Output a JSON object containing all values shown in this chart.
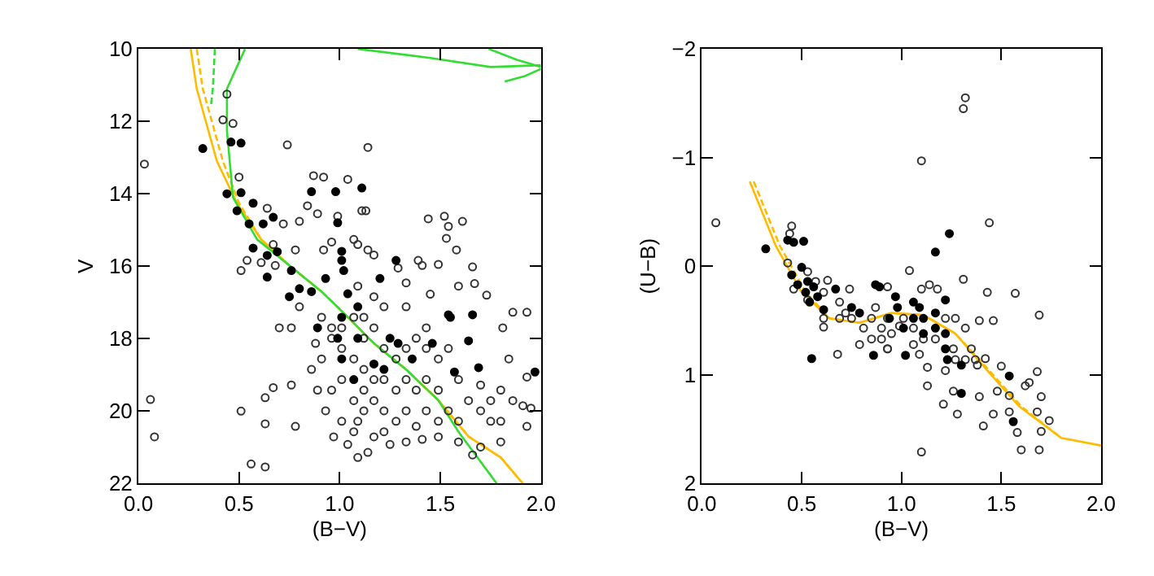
{
  "chart_data": [
    {
      "type": "scatter",
      "xlabel": "(B−V)",
      "ylabel": "V",
      "xlim": [
        0,
        2
      ],
      "ylim": [
        22,
        10
      ],
      "xticks": [
        {
          "value": 0,
          "label": "0.0"
        },
        {
          "value": 0.5,
          "label": "0.5"
        },
        {
          "value": 1,
          "label": "1.0"
        },
        {
          "value": 1.5,
          "label": "1.5"
        },
        {
          "value": 2,
          "label": "2.0"
        }
      ],
      "yticks": [
        10,
        12,
        14,
        16,
        18,
        20,
        22
      ],
      "series": [
        {
          "marker": "circle-open",
          "color": "#333333",
          "x": [
            0.06,
            0.08,
            0.03,
            0.56,
            0.63,
            0.51,
            0.42,
            0.47,
            0.44,
            0.5,
            0.74,
            1.14,
            0.87,
            0.92,
            1.04,
            1.13,
            1.11,
            1.44,
            1.52,
            1.61,
            1.54,
            1.53,
            1.58,
            1.66,
            1.73,
            1.86,
            1.93,
            1.81,
            1.84,
            1.93,
            1.95,
            1.93,
            1.8,
            1.66,
            1.39,
            1.41,
            1.49,
            1.29,
            1.33,
            1.45,
            1.59,
            1.67,
            0.64,
            0.72,
            0.8,
            0.67,
            0.78,
            0.61,
            0.68,
            0.7,
            0.76,
            0.76,
            0.67,
            0.78,
            0.63,
            0.63,
            0.8,
            0.91,
            0.88,
            0.91,
            0.86,
            0.89,
            0.93,
            0.97,
            1.09,
            1.14,
            1.25,
            1.33,
            1.41,
            1.17,
            1.09,
            1.07,
            1.12,
            1.17,
            1.22,
            1.28,
            1.33,
            1.38,
            1.43,
            1.49,
            1.54,
            1.59,
            1.7,
            1.75,
            1.86,
            1.91,
            1.8,
            1.7,
            1.59,
            1.49,
            1.38,
            1.28,
            1.22,
            1.17,
            1.12,
            1.07,
            1.01,
            0.96,
            0.96,
            1.01,
            1.07,
            1.12,
            1.12,
            1.17,
            1.22,
            1.28,
            1.33,
            1.38,
            1.43,
            1.49,
            1.54,
            1.43,
            1.33,
            1.22,
            1.17,
            1.09,
            1.07,
            1.09,
            1.14,
            1.17,
            0.92,
            0.96,
            0.99,
            0.84,
            0.89,
            0.51,
            0.54,
            1.43,
            1.33,
            1.01,
            0.96,
            1.01,
            1.22,
            1.49,
            1.59,
            1.7,
            1.8,
            1.75,
            1.64,
            1.12,
            1.07,
            1.04
          ],
          "values": [
            19.68,
            20.71,
            13.18,
            21.46,
            21.54,
            20.0,
            11.96,
            12.06,
            11.25,
            13.54,
            12.65,
            12.72,
            13.5,
            13.54,
            13.6,
            14.47,
            14.47,
            14.69,
            14.62,
            14.76,
            14.9,
            15.23,
            15.55,
            16.02,
            16.8,
            17.27,
            17.27,
            17.7,
            18.56,
            19.06,
            19.92,
            20.42,
            20.85,
            21.21,
            15.84,
            15.98,
            15.95,
            16.05,
            16.46,
            16.77,
            16.55,
            16.48,
            14.4,
            14.83,
            14.76,
            15.4,
            15.55,
            15.9,
            15.98,
            17.7,
            17.7,
            19.28,
            19.35,
            20.42,
            19.63,
            20.35,
            17.12,
            17.41,
            18.13,
            18.56,
            18.85,
            19.42,
            19.99,
            20.71,
            21.28,
            21.14,
            20.92,
            20.85,
            20.78,
            20.71,
            20.28,
            19.71,
            19.42,
            19.71,
            19.99,
            20.28,
            19.99,
            20.42,
            19.99,
            20.28,
            19.99,
            20.28,
            19.99,
            20.28,
            19.71,
            19.85,
            19.42,
            19.28,
            19.13,
            19.42,
            19.42,
            19.42,
            19.13,
            19.13,
            18.85,
            18.56,
            18.27,
            17.99,
            17.7,
            17.7,
            17.41,
            17.41,
            17.99,
            17.7,
            18.27,
            18.56,
            18.27,
            17.99,
            18.27,
            18.56,
            18.27,
            17.7,
            17.12,
            17.12,
            16.84,
            16.55,
            15.26,
            15.4,
            15.55,
            15.69,
            15.55,
            15.33,
            14.62,
            14.33,
            14.55,
            16.12,
            15.84,
            19.13,
            19.13,
            19.13,
            19.42,
            20.28,
            20.57,
            20.71,
            20.85,
            20.99,
            20.28,
            19.71,
            19.71,
            19.99,
            20.57,
            20.92
          ]
        },
        {
          "marker": "circle",
          "color": "#000000",
          "x": [
            0.32,
            0.46,
            0.51,
            0.44,
            0.51,
            0.49,
            0.57,
            0.55,
            0.62,
            0.67,
            0.57,
            0.64,
            0.64,
            0.69,
            0.75,
            0.76,
            0.86,
            0.98,
            1.11,
            0.99,
            1.01,
            1.01,
            1.02,
            0.93,
            0.89,
            0.99,
            1.04,
            1.28,
            1.2,
            1.09,
            1.01,
            1.01,
            1.09,
            1.17,
            1.25,
            1.29,
            1.36,
            1.46,
            1.54,
            1.55,
            1.66,
            1.64,
            1.57,
            1.69,
            1.97,
            1.22,
            1.07,
            0.86,
            0.8
          ],
          "values": [
            12.75,
            12.57,
            12.6,
            14.0,
            13.97,
            14.47,
            14.26,
            14.83,
            14.83,
            14.65,
            15.5,
            16.3,
            15.7,
            15.6,
            16.84,
            16.12,
            13.94,
            13.94,
            13.84,
            14.8,
            15.59,
            15.84,
            16.12,
            16.34,
            17.7,
            17.99,
            16.76,
            15.84,
            16.34,
            17.12,
            17.41,
            18.56,
            17.99,
            18.7,
            17.99,
            18.13,
            18.56,
            18.13,
            17.34,
            17.41,
            17.34,
            18.06,
            18.92,
            18.8,
            18.92,
            18.85,
            19.13,
            16.7,
            16.62
          ]
        },
        {
          "type": "line",
          "line_style": "solid",
          "color": "#ffbb00",
          "x": [
            0.26,
            0.29,
            0.39,
            0.49,
            0.61,
            0.75,
            0.91,
            1.04,
            1.17,
            1.33,
            1.49,
            1.64,
            1.8,
            1.91
          ],
          "values": [
            10,
            11.1,
            13.1,
            14.26,
            15.26,
            15.98,
            16.7,
            17.4,
            18.13,
            18.85,
            19.7,
            20.7,
            21.28,
            22
          ]
        },
        {
          "type": "line",
          "line_style": "dashed",
          "color": "#ffbb00",
          "x": [
            0.29,
            0.32,
            0.42,
            0.5,
            0.61,
            0.75,
            0.91,
            1.04,
            1.17,
            1.33,
            1.49,
            1.64,
            1.8,
            1.91
          ],
          "values": [
            10,
            11.1,
            13.1,
            14.26,
            15.26,
            15.98,
            16.7,
            17.4,
            18.13,
            18.85,
            19.7,
            20.7,
            21.28,
            22
          ]
        },
        {
          "type": "line",
          "line_style": "solid",
          "color": "#33dd33",
          "x": [
            0.53,
            0.44,
            0.44,
            0.47,
            0.59,
            0.75,
            0.91,
            1.04,
            1.17,
            1.33,
            1.49,
            1.59,
            1.78
          ],
          "values": [
            10,
            11.1,
            12.25,
            14.1,
            15.26,
            15.98,
            16.7,
            17.4,
            18.13,
            18.85,
            19.7,
            20.57,
            22
          ]
        },
        {
          "type": "line",
          "line_style": "dashed",
          "color": "#33dd33",
          "x": [
            0.38,
            0.37,
            0.36
          ],
          "values": [
            10,
            11.1,
            11.6
          ]
        },
        {
          "type": "line",
          "line_style": "solid",
          "color": "#33dd33",
          "x": [
            1.09,
            1.45,
            1.75,
            2.0
          ],
          "values": [
            10,
            10.25,
            10.5,
            10.45
          ]
        },
        {
          "type": "line",
          "line_style": "solid",
          "color": "#33dd33",
          "x": [
            1.74,
            1.88,
            2.0
          ],
          "values": [
            10,
            10.3,
            10.5
          ]
        },
        {
          "type": "line",
          "line_style": "solid",
          "color": "#33dd33",
          "x": [
            1.82,
            1.92,
            2.0
          ],
          "values": [
            10.9,
            10.75,
            10.55
          ]
        }
      ]
    },
    {
      "type": "scatter",
      "xlabel": "(B−V)",
      "ylabel": "(U−B)",
      "xlim": [
        0,
        2
      ],
      "ylim": [
        2,
        -2
      ],
      "xticks": [
        {
          "value": 0,
          "label": "0.0"
        },
        {
          "value": 0.5,
          "label": "0.5"
        },
        {
          "value": 1,
          "label": "1.0"
        },
        {
          "value": 1.5,
          "label": "1.5"
        },
        {
          "value": 2,
          "label": "2.0"
        }
      ],
      "yticks": [
        {
          "value": -2,
          "label": "−2"
        },
        {
          "value": -1,
          "label": "−1"
        },
        0,
        1,
        2
      ],
      "series": [
        {
          "marker": "circle-open",
          "color": "#333333",
          "x": [
            0.07,
            0.45,
            0.44,
            0.43,
            0.46,
            0.53,
            0.57,
            0.61,
            0.63,
            0.61,
            0.68,
            0.74,
            0.69,
            0.72,
            0.75,
            0.79,
            0.81,
            0.85,
            0.9,
            0.93,
            0.93,
            0.9,
            0.95,
            0.99,
            1.04,
            1.1,
            1.1,
            1.14,
            1.18,
            1.11,
            1.06,
            1.09,
            1.13,
            1.13,
            1.1,
            1.21,
            1.26,
            1.28,
            1.32,
            1.31,
            1.31,
            1.32,
            1.35,
            1.38,
            1.39,
            1.41,
            1.39,
            1.43,
            1.44,
            1.46,
            1.42,
            1.46,
            1.48,
            1.5,
            1.54,
            1.57,
            1.58,
            1.6,
            1.62,
            1.64,
            1.68,
            1.69,
            1.69,
            1.7,
            1.68,
            1.7,
            1.74,
            1.54,
            1.37,
            1.26,
            1.27,
            1.32,
            1.22,
            0.69,
            0.85,
            0.87,
            0.93,
            1.01,
            1.06,
            1.17,
            1.22,
            1.27,
            0.53,
            0.61,
            0.93
          ],
          "values": [
            -0.4,
            -0.37,
            -0.3,
            -0.03,
            0.21,
            0.05,
            0.14,
            0.24,
            0.13,
            0.56,
            0.81,
            0.21,
            0.33,
            0.43,
            0.48,
            0.72,
            0.57,
            0.48,
            0.67,
            0.19,
            0.76,
            0.57,
            0.62,
            0.55,
            0.04,
            -0.97,
            0.21,
            0.17,
            0.21,
            0.67,
            0.72,
            0.81,
            0.93,
            1.1,
            1.71,
            1.27,
            1.15,
            1.36,
            -1.55,
            -1.45,
            0.12,
            0.57,
            0.76,
            0.91,
            1.2,
            1.47,
            0.5,
            0.24,
            -0.4,
            0.5,
            0.85,
            1.36,
            1.15,
            0.92,
            1.19,
            0.25,
            1.53,
            1.69,
            1.1,
            1.07,
            0.97,
            0.45,
            1.69,
            1.2,
            1.34,
            1.52,
            1.42,
            1.34,
            0.86,
            0.76,
            0.86,
            0.86,
            0.96,
            0.48,
            0.67,
            0.38,
            0.48,
            0.48,
            0.57,
            0.67,
            0.48,
            0.48,
            0.31,
            0.48,
            0.76
          ]
        },
        {
          "marker": "circle",
          "color": "#000000",
          "x": [
            0.32,
            0.43,
            0.46,
            0.51,
            0.45,
            0.5,
            0.48,
            0.53,
            0.52,
            0.56,
            0.58,
            0.54,
            0.61,
            0.67,
            0.55,
            0.75,
            0.79,
            0.87,
            0.89,
            0.86,
            1.02,
            0.97,
            0.98,
            1.06,
            1.09,
            1.11,
            1.17,
            1.17,
            1.24,
            1.22,
            1.17,
            1.22,
            1.23,
            1.01,
            0.94,
            1.3,
            1.3,
            1.54,
            1.56,
            1.06,
            1.11,
            1.22
          ],
          "values": [
            -0.16,
            -0.24,
            -0.22,
            -0.23,
            0.08,
            0.01,
            0.17,
            0.14,
            0.24,
            0.19,
            0.28,
            0.33,
            0.4,
            0.21,
            0.85,
            0.38,
            0.43,
            0.17,
            0.19,
            0.82,
            0.82,
            0.28,
            0.38,
            0.33,
            0.38,
            0.48,
            0.43,
            -0.13,
            -0.3,
            0.31,
            0.57,
            0.76,
            0.86,
            0.57,
            0.48,
            1.17,
            0.91,
            1.01,
            1.43,
            0.48,
            0.62,
            0.62
          ]
        },
        {
          "type": "line",
          "line_style": "solid",
          "color": "#ffbb00",
          "x": [
            0.24,
            0.37,
            0.5,
            0.64,
            0.79,
            0.95,
            1.11,
            1.27,
            1.43,
            1.59,
            1.8,
            2.0
          ],
          "values": [
            -0.78,
            -0.19,
            0.24,
            0.48,
            0.52,
            0.43,
            0.45,
            0.62,
            0.96,
            1.29,
            1.58,
            1.65
          ]
        },
        {
          "type": "line",
          "line_style": "dashed",
          "color": "#ffbb00",
          "x": [
            0.26,
            0.39,
            0.52,
            0.64,
            0.79,
            0.95,
            1.11,
            1.27,
            1.44,
            1.6,
            1.8
          ],
          "values": [
            -0.78,
            -0.19,
            0.24,
            0.48,
            0.52,
            0.43,
            0.45,
            0.62,
            0.96,
            1.29,
            1.58
          ]
        }
      ]
    }
  ]
}
